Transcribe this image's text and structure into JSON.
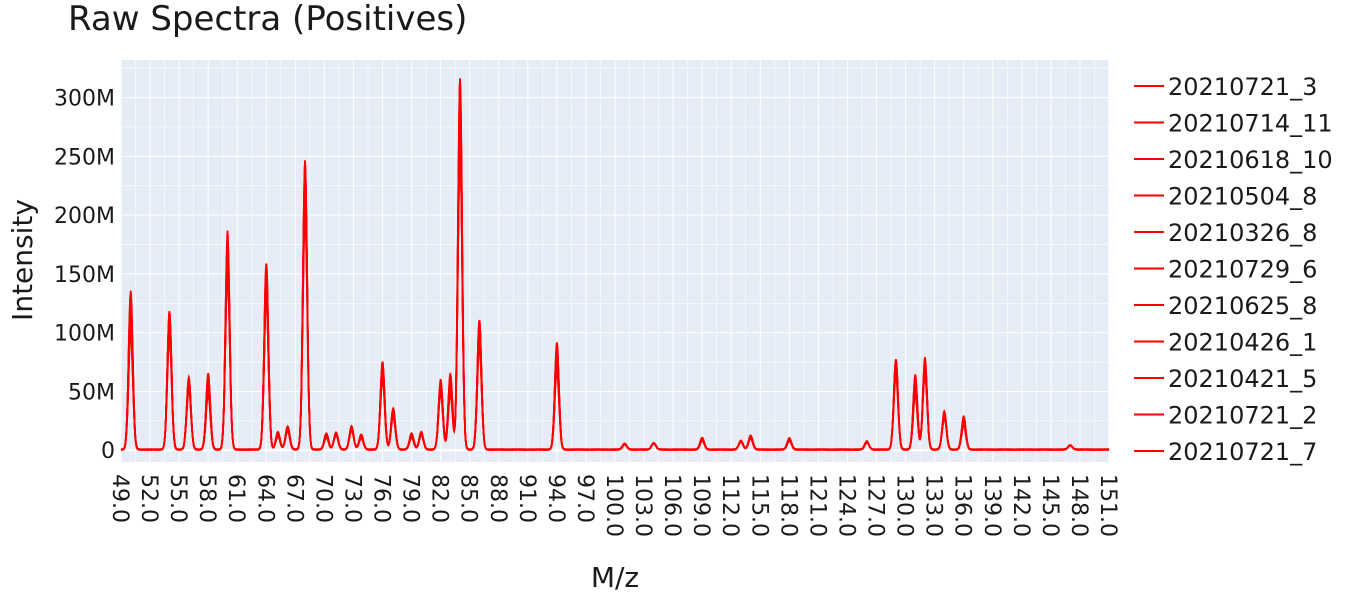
{
  "chart_data": {
    "type": "line",
    "title": "Raw Spectra (Positives)",
    "xlabel": "M/z",
    "ylabel": "Intensity",
    "xlim": [
      49,
      151
    ],
    "ylim": [
      -10000000,
      332000000
    ],
    "grid": true,
    "legend_position": "right",
    "line_color": "#ff0000",
    "plot_background": "#e5ecf6",
    "y_ticks": [
      {
        "value": 0,
        "label": "0"
      },
      {
        "value": 50000000,
        "label": "50M"
      },
      {
        "value": 100000000,
        "label": "100M"
      },
      {
        "value": 150000000,
        "label": "150M"
      },
      {
        "value": 200000000,
        "label": "200M"
      },
      {
        "value": 250000000,
        "label": "250M"
      },
      {
        "value": 300000000,
        "label": "300M"
      }
    ],
    "x_ticks": [
      "49.0",
      "52.0",
      "55.0",
      "58.0",
      "61.0",
      "64.0",
      "67.0",
      "70.0",
      "73.0",
      "76.0",
      "79.0",
      "82.0",
      "85.0",
      "88.0",
      "91.0",
      "94.0",
      "97.0",
      "100.0",
      "103.0",
      "106.0",
      "109.0",
      "112.0",
      "115.0",
      "118.0",
      "121.0",
      "124.0",
      "127.0",
      "130.0",
      "133.0",
      "136.0",
      "139.0",
      "142.0",
      "145.0",
      "148.0",
      "151.0"
    ],
    "peaks": [
      {
        "mz": 50.0,
        "intensity": 135000000
      },
      {
        "mz": 54.0,
        "intensity": 118000000
      },
      {
        "mz": 56.0,
        "intensity": 62000000
      },
      {
        "mz": 58.0,
        "intensity": 65000000
      },
      {
        "mz": 60.0,
        "intensity": 186000000
      },
      {
        "mz": 64.0,
        "intensity": 158000000
      },
      {
        "mz": 65.2,
        "intensity": 15000000
      },
      {
        "mz": 66.2,
        "intensity": 20000000
      },
      {
        "mz": 68.0,
        "intensity": 246000000
      },
      {
        "mz": 70.2,
        "intensity": 14000000
      },
      {
        "mz": 71.2,
        "intensity": 15000000
      },
      {
        "mz": 72.8,
        "intensity": 20000000
      },
      {
        "mz": 73.8,
        "intensity": 13000000
      },
      {
        "mz": 76.0,
        "intensity": 75000000
      },
      {
        "mz": 77.1,
        "intensity": 35000000
      },
      {
        "mz": 79.0,
        "intensity": 14000000
      },
      {
        "mz": 80.0,
        "intensity": 15000000
      },
      {
        "mz": 82.0,
        "intensity": 60000000
      },
      {
        "mz": 83.0,
        "intensity": 65000000
      },
      {
        "mz": 84.0,
        "intensity": 316000000
      },
      {
        "mz": 86.0,
        "intensity": 110000000
      },
      {
        "mz": 94.0,
        "intensity": 91000000
      },
      {
        "mz": 101.0,
        "intensity": 5000000
      },
      {
        "mz": 104.0,
        "intensity": 6000000
      },
      {
        "mz": 109.0,
        "intensity": 10000000
      },
      {
        "mz": 113.0,
        "intensity": 8000000
      },
      {
        "mz": 114.0,
        "intensity": 12000000
      },
      {
        "mz": 118.0,
        "intensity": 10000000
      },
      {
        "mz": 126.0,
        "intensity": 7000000
      },
      {
        "mz": 129.0,
        "intensity": 77000000
      },
      {
        "mz": 131.0,
        "intensity": 64000000
      },
      {
        "mz": 132.0,
        "intensity": 79000000
      },
      {
        "mz": 134.0,
        "intensity": 33000000
      },
      {
        "mz": 136.0,
        "intensity": 28000000
      },
      {
        "mz": 147.0,
        "intensity": 4000000
      }
    ],
    "series": [
      {
        "name": "20210721_3"
      },
      {
        "name": "20210714_11"
      },
      {
        "name": "20210618_10"
      },
      {
        "name": "20210504_8"
      },
      {
        "name": "20210326_8"
      },
      {
        "name": "20210729_6"
      },
      {
        "name": "20210625_8"
      },
      {
        "name": "20210426_1"
      },
      {
        "name": "20210421_5"
      },
      {
        "name": "20210721_2"
      },
      {
        "name": "20210721_7"
      }
    ]
  }
}
